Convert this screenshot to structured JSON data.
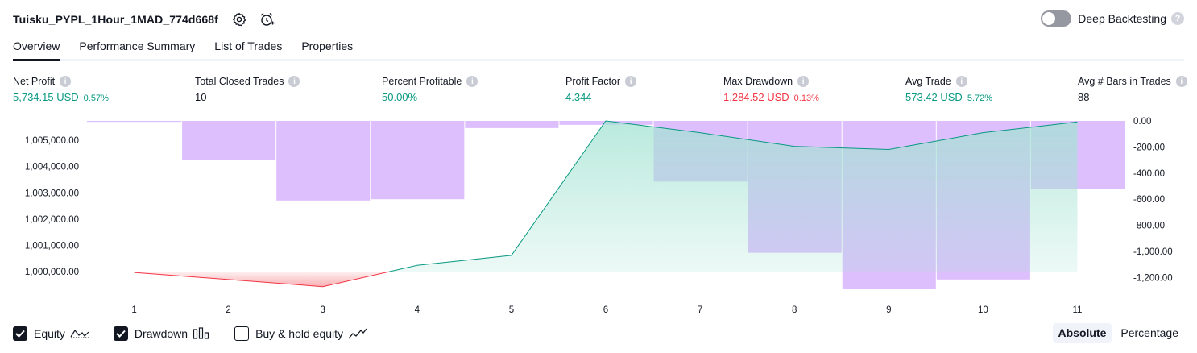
{
  "header": {
    "strategy_title": "Tuisku_PYPL_1Hour_1MAD_774d668f",
    "icons": [
      "gear-icon",
      "alarm-add-icon"
    ],
    "deep_backtesting_label": "Deep Backtesting",
    "deep_backtesting_enabled": false
  },
  "tabs": [
    {
      "label": "Overview",
      "active": true
    },
    {
      "label": "Performance Summary",
      "active": false
    },
    {
      "label": "List of Trades",
      "active": false
    },
    {
      "label": "Properties",
      "active": false
    }
  ],
  "metrics": [
    {
      "label": "Net Profit",
      "value": "5,734.15 USD",
      "pct": "0.57%",
      "color": "#089981"
    },
    {
      "label": "Total Closed Trades",
      "value": "10",
      "pct": "",
      "color": "#131722"
    },
    {
      "label": "Percent Profitable",
      "value": "50.00%",
      "pct": "",
      "color": "#089981"
    },
    {
      "label": "Profit Factor",
      "value": "4.344",
      "pct": "",
      "color": "#089981"
    },
    {
      "label": "Max Drawdown",
      "value": "1,284.52 USD",
      "pct": "0.13%",
      "color": "#f23645"
    },
    {
      "label": "Avg Trade",
      "value": "573.42 USD",
      "pct": "5.72%",
      "color": "#089981"
    },
    {
      "label": "Avg # Bars in Trades",
      "value": "88",
      "pct": "",
      "color": "#131722"
    }
  ],
  "chart_data": {
    "type": "line",
    "x": [
      1,
      2,
      3,
      4,
      5,
      6,
      7,
      8,
      9,
      10,
      11
    ],
    "left_axis": {
      "ticks": [
        "1,005,000.00",
        "1,004,000.00",
        "1,003,000.00",
        "1,002,000.00",
        "1,001,000.00",
        "1,000,000.00"
      ],
      "tick_values": [
        1005000,
        1004000,
        1003000,
        1002000,
        1001000,
        1000000
      ],
      "ylim": [
        999400,
        1005740
      ]
    },
    "right_axis": {
      "ticks": [
        "0.00",
        "-200.00",
        "-400.00",
        "-600.00",
        "-800.00",
        "-1,000.00",
        "-1,200.00"
      ],
      "tick_values": [
        0,
        -200,
        -400,
        -600,
        -800,
        -1000,
        -1200
      ],
      "ylim": [
        -1300,
        0
      ]
    },
    "series": [
      {
        "name": "Equity",
        "axis": "left",
        "values": [
          999970,
          999700,
          999430,
          1000240,
          1000620,
          1005740,
          1005290,
          1004770,
          1004650,
          1005290,
          1005700
        ]
      },
      {
        "name": "Drawdown",
        "axis": "right",
        "type": "bar",
        "values": [
          0,
          -300,
          -610,
          -600,
          -55,
          -30,
          -465,
          -1010,
          -1285,
          -1215,
          -520
        ]
      }
    ],
    "colors": {
      "equity_up": "#089981",
      "equity_down": "#f23645",
      "equity_fill_up": "#a3e3d2",
      "equity_fill_down": "#f7a1a6",
      "drawdown": "#d8b4fe"
    }
  },
  "legend": {
    "items": [
      {
        "label": "Equity",
        "checked": true,
        "icon": "equity-line-icon"
      },
      {
        "label": "Drawdown",
        "checked": true,
        "icon": "drawdown-bars-icon"
      },
      {
        "label": "Buy & hold equity",
        "checked": false,
        "icon": "buy-hold-line-icon"
      }
    ],
    "modes": [
      {
        "label": "Absolute",
        "active": true
      },
      {
        "label": "Percentage",
        "active": false
      }
    ]
  }
}
